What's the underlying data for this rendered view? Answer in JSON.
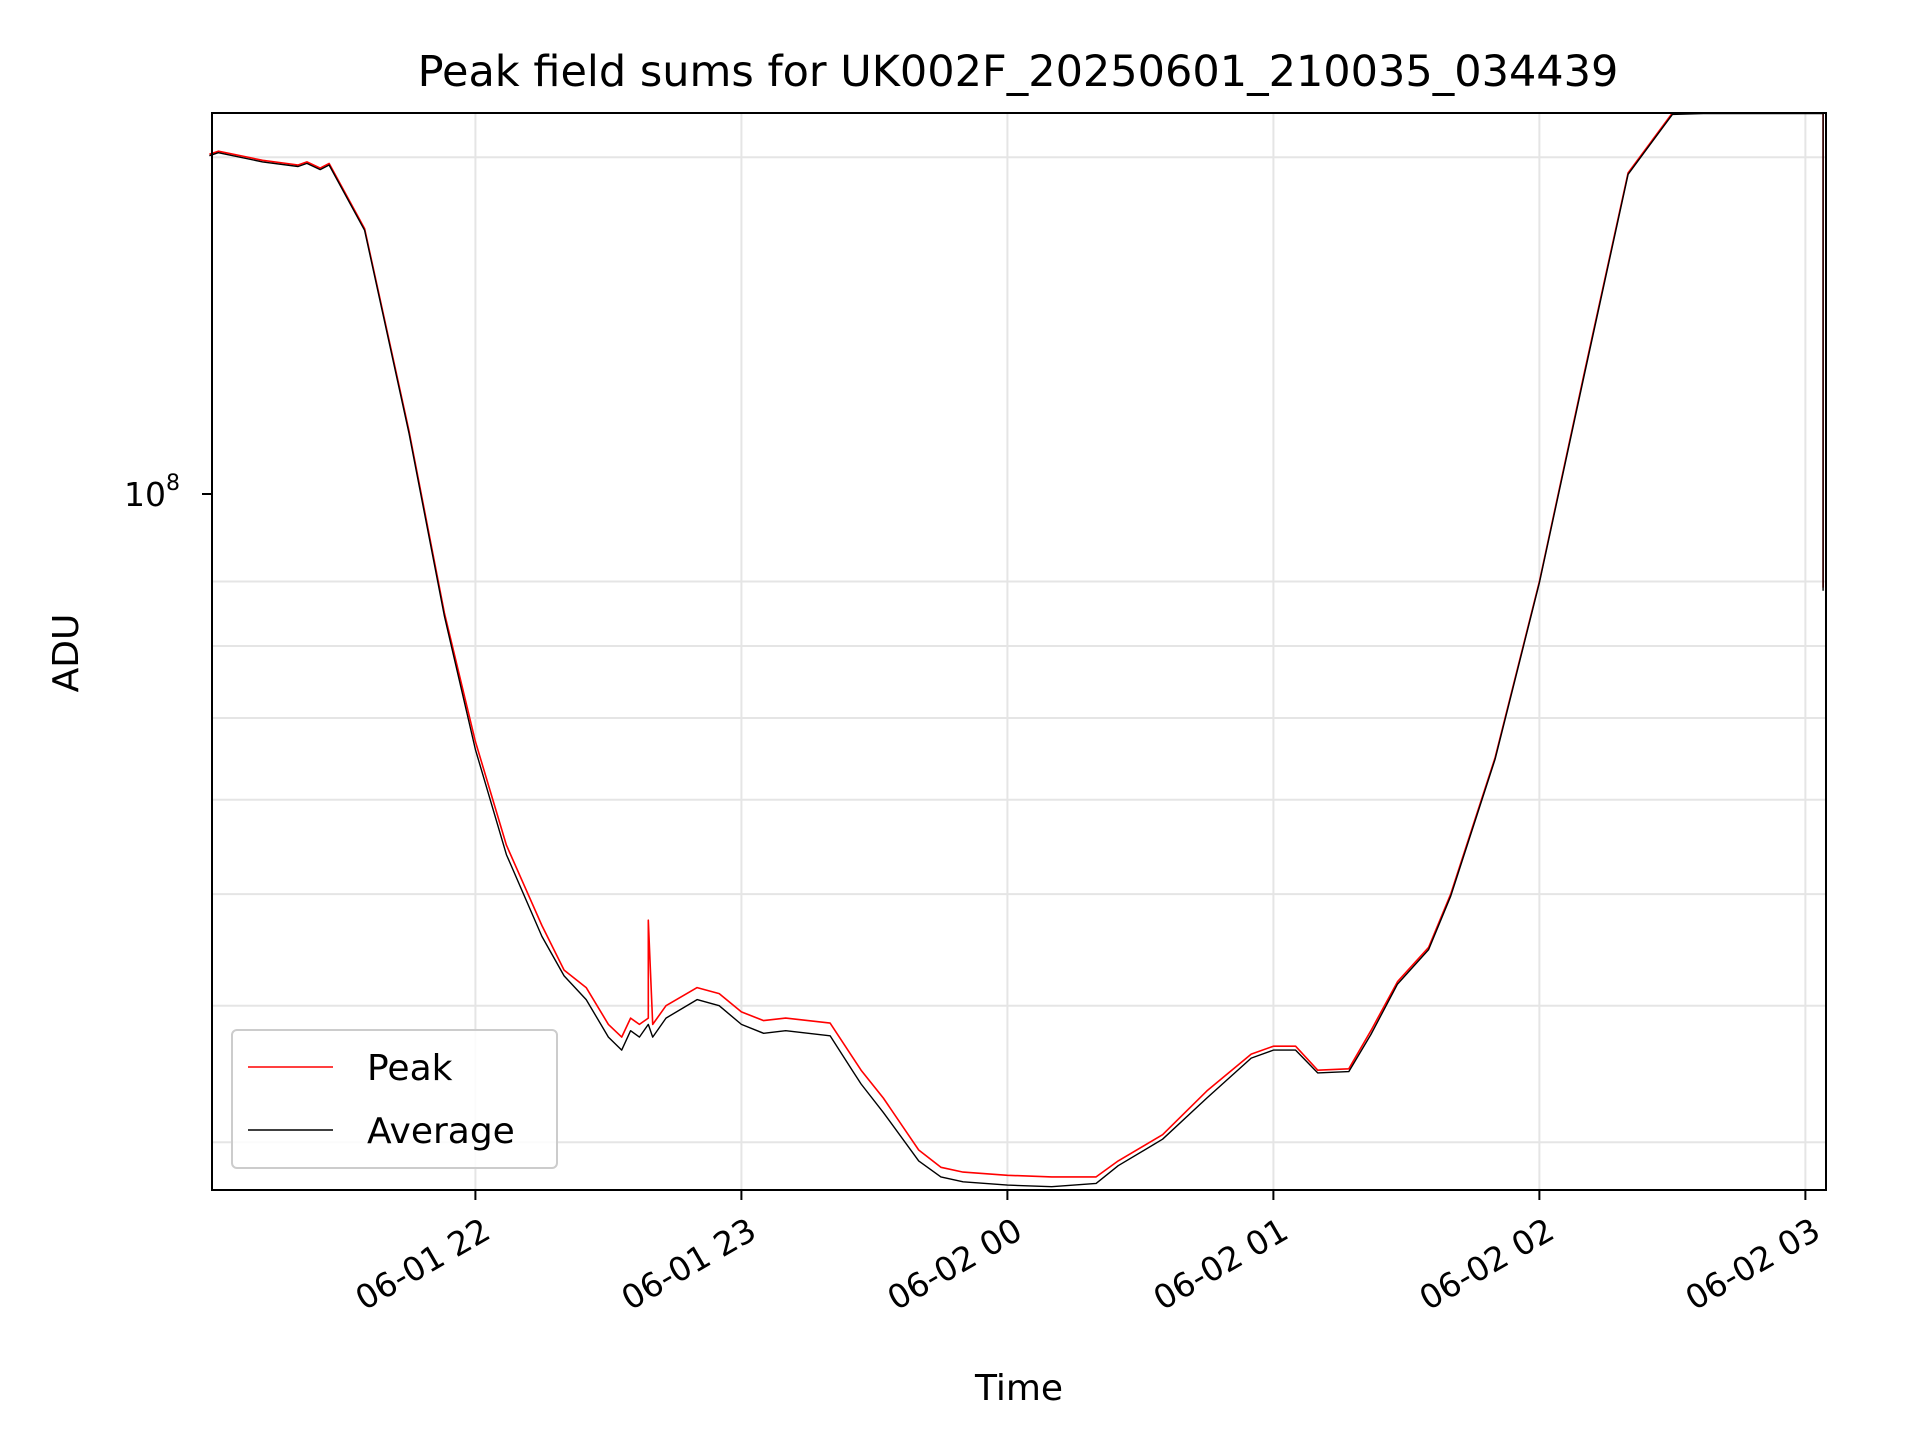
{
  "chart_data": {
    "type": "line",
    "title": "Peak field sums for UK002F_20250601_210035_034439",
    "xlabel": "Time",
    "ylabel": "ADU",
    "yscale": "log",
    "grid": true,
    "legend_position": "lower-left",
    "x_ticks": [
      "06-01 22",
      "06-01 23",
      "06-02 00",
      "06-02 01",
      "06-02 02",
      "06-02 03"
    ],
    "y_tick_label": "10^8",
    "xlim": [
      "2025-06-01 21:00:35",
      "2025-06-02 03:04:39"
    ],
    "ylim": [
      37000000,
      215000000
    ],
    "series": [
      {
        "name": "Peak",
        "color": "#ff0000",
        "x": [
          "2025-06-01 21:00",
          "2025-06-01 21:02",
          "2025-06-01 21:12",
          "2025-06-01 21:20",
          "2025-06-01 21:22",
          "2025-06-01 21:25",
          "2025-06-01 21:27",
          "2025-06-01 21:35",
          "2025-06-01 21:45",
          "2025-06-01 21:53",
          "2025-06-01 22:00",
          "2025-06-01 22:07",
          "2025-06-01 22:15",
          "2025-06-01 22:20",
          "2025-06-01 22:25",
          "2025-06-01 22:30",
          "2025-06-01 22:33",
          "2025-06-01 22:35",
          "2025-06-01 22:37",
          "2025-06-01 22:39",
          "2025-06-01 22:39",
          "2025-06-01 22:40",
          "2025-06-01 22:43",
          "2025-06-01 22:50",
          "2025-06-01 22:55",
          "2025-06-01 23:00",
          "2025-06-01 23:05",
          "2025-06-01 23:10",
          "2025-06-01 23:20",
          "2025-06-01 23:25",
          "2025-06-01 23:27",
          "2025-06-01 23:32",
          "2025-06-01 23:40",
          "2025-06-01 23:45",
          "2025-06-01 23:50",
          "2025-06-02 00:00",
          "2025-06-02 00:10",
          "2025-06-02 00:20",
          "2025-06-02 00:25",
          "2025-06-02 00:35",
          "2025-06-02 00:45",
          "2025-06-02 00:55",
          "2025-06-02 01:00",
          "2025-06-02 01:05",
          "2025-06-02 01:10",
          "2025-06-02 01:17",
          "2025-06-02 01:22",
          "2025-06-02 01:28",
          "2025-06-02 01:35",
          "2025-06-02 01:40",
          "2025-06-02 01:50",
          "2025-06-02 02:00",
          "2025-06-02 02:10",
          "2025-06-02 02:20",
          "2025-06-02 02:30",
          "2025-06-02 02:37",
          "2025-06-02 02:45",
          "2025-06-02 02:50",
          "2025-06-02 03:04",
          "2025-06-02 03:04"
        ],
        "y": [
          201000000,
          202000000,
          199000000,
          197500000,
          198500000,
          196500000,
          198000000,
          178000000,
          128000000,
          95000000,
          77000000,
          65000000,
          57000000,
          53000000,
          51500000,
          48500000,
          47500000,
          49000000,
          48500000,
          49000000,
          57500000,
          48500000,
          50000000,
          51500000,
          51000000,
          49500000,
          48800000,
          49000000,
          48600000,
          46000000,
          45000000,
          43000000,
          39500000,
          38400000,
          38100000,
          37900000,
          37800000,
          37800000,
          38800000,
          40500000,
          43500000,
          46200000,
          46800000,
          46800000,
          45000000,
          45100000,
          48000000,
          52000000,
          55000000,
          60000000,
          75000000,
          100000000,
          140000000,
          195000000,
          215000000,
          215000000,
          215000000,
          215000000,
          215000000,
          99000000
        ]
      },
      {
        "name": "Average",
        "color": "#000000",
        "x": [
          "2025-06-01 21:00",
          "2025-06-01 21:02",
          "2025-06-01 21:12",
          "2025-06-01 21:20",
          "2025-06-01 21:22",
          "2025-06-01 21:25",
          "2025-06-01 21:27",
          "2025-06-01 21:35",
          "2025-06-01 21:45",
          "2025-06-01 21:53",
          "2025-06-01 22:00",
          "2025-06-01 22:07",
          "2025-06-01 22:15",
          "2025-06-01 22:20",
          "2025-06-01 22:25",
          "2025-06-01 22:30",
          "2025-06-01 22:33",
          "2025-06-01 22:35",
          "2025-06-01 22:37",
          "2025-06-01 22:39",
          "2025-06-01 22:40",
          "2025-06-01 22:43",
          "2025-06-01 22:50",
          "2025-06-01 22:55",
          "2025-06-01 23:00",
          "2025-06-01 23:05",
          "2025-06-01 23:10",
          "2025-06-01 23:20",
          "2025-06-01 23:25",
          "2025-06-01 23:27",
          "2025-06-01 23:32",
          "2025-06-01 23:40",
          "2025-06-01 23:45",
          "2025-06-01 23:50",
          "2025-06-02 00:00",
          "2025-06-02 00:10",
          "2025-06-02 00:20",
          "2025-06-02 00:25",
          "2025-06-02 00:35",
          "2025-06-02 00:45",
          "2025-06-02 00:55",
          "2025-06-02 01:00",
          "2025-06-02 01:05",
          "2025-06-02 01:10",
          "2025-06-02 01:17",
          "2025-06-02 01:22",
          "2025-06-02 01:28",
          "2025-06-02 01:35",
          "2025-06-02 01:40",
          "2025-06-02 01:50",
          "2025-06-02 02:00",
          "2025-06-02 02:10",
          "2025-06-02 02:20",
          "2025-06-02 02:30",
          "2025-06-02 02:37",
          "2025-06-02 02:45",
          "2025-06-02 02:50",
          "2025-06-02 03:04",
          "2025-06-02 03:04"
        ],
        "y": [
          200500000,
          201500000,
          198500000,
          197000000,
          198000000,
          196000000,
          197500000,
          177500000,
          127500000,
          94500000,
          76000000,
          64000000,
          56000000,
          52500000,
          50500000,
          47500000,
          46500000,
          48000000,
          47500000,
          48500000,
          47500000,
          49000000,
          50500000,
          50000000,
          48500000,
          47800000,
          48000000,
          47600000,
          45000000,
          44000000,
          42000000,
          38800000,
          37800000,
          37500000,
          37300000,
          37200000,
          37400000,
          38500000,
          40200000,
          43000000,
          45900000,
          46500000,
          46500000,
          44800000,
          44900000,
          47700000,
          51800000,
          54800000,
          59800000,
          74800000,
          99800000,
          139500000,
          194500000,
          214500000,
          214800000,
          214800000,
          214800000,
          214800000,
          98500000
        ]
      }
    ]
  }
}
